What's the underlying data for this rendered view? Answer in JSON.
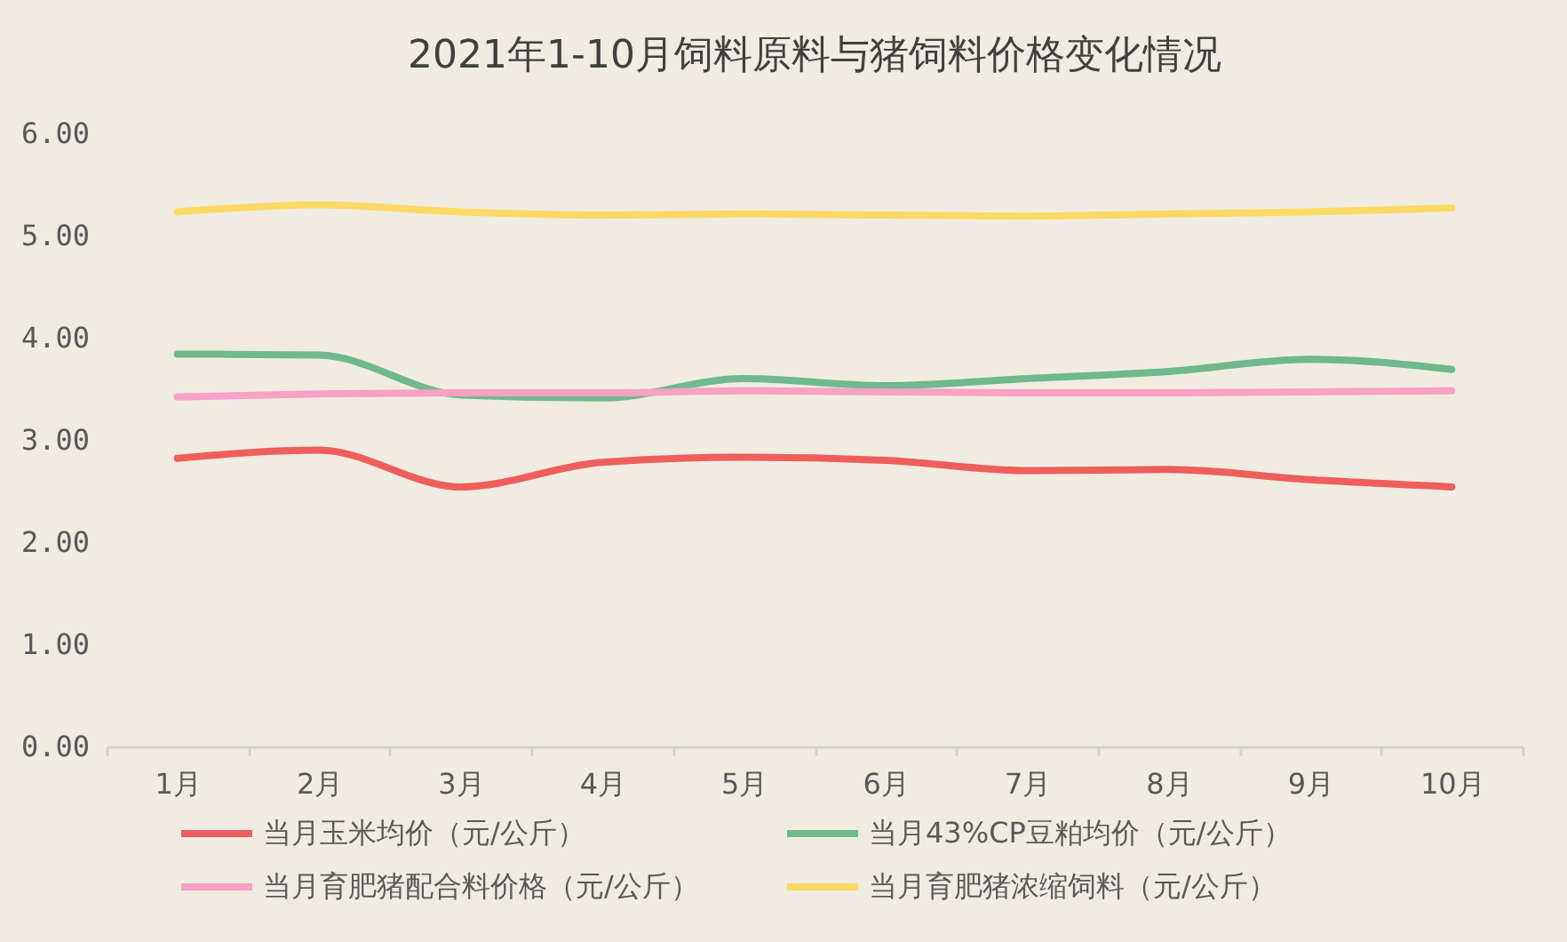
{
  "chart_data": {
    "type": "line",
    "title": "2021年1-10月饲料原料与猪饲料价格变化情况",
    "categories": [
      "1月",
      "2月",
      "3月",
      "4月",
      "5月",
      "6月",
      "7月",
      "8月",
      "9月",
      "10月"
    ],
    "series": [
      {
        "name": "当月玉米均价（元/公斤）",
        "color": "#ef5d5d",
        "values": [
          2.82,
          2.9,
          2.54,
          2.78,
          2.83,
          2.8,
          2.7,
          2.71,
          2.61,
          2.54
        ]
      },
      {
        "name": "当月43%CP豆粕均价（元/公斤）",
        "color": "#6fb98c",
        "values": [
          3.84,
          3.83,
          3.44,
          3.41,
          3.6,
          3.53,
          3.6,
          3.67,
          3.79,
          3.69
        ]
      },
      {
        "name": "当月育肥猪配合料价格（元/公斤）",
        "color": "#f6a1c5",
        "values": [
          3.42,
          3.45,
          3.46,
          3.46,
          3.48,
          3.47,
          3.46,
          3.46,
          3.47,
          3.48
        ]
      },
      {
        "name": "当月育肥猪浓缩饲料（元/公斤）",
        "color": "#ffd966",
        "values": [
          5.23,
          5.3,
          5.23,
          5.2,
          5.21,
          5.2,
          5.19,
          5.21,
          5.23,
          5.27
        ]
      }
    ],
    "ylim": [
      0,
      6
    ],
    "yticks": [
      {
        "value": 0,
        "label": "0.00"
      },
      {
        "value": 1,
        "label": "1.00"
      },
      {
        "value": 2,
        "label": "2.00"
      },
      {
        "value": 3,
        "label": "3.00"
      },
      {
        "value": 4,
        "label": "4.00"
      },
      {
        "value": 5,
        "label": "5.00"
      },
      {
        "value": 6,
        "label": "6.00"
      }
    ],
    "legend": "bottom"
  }
}
